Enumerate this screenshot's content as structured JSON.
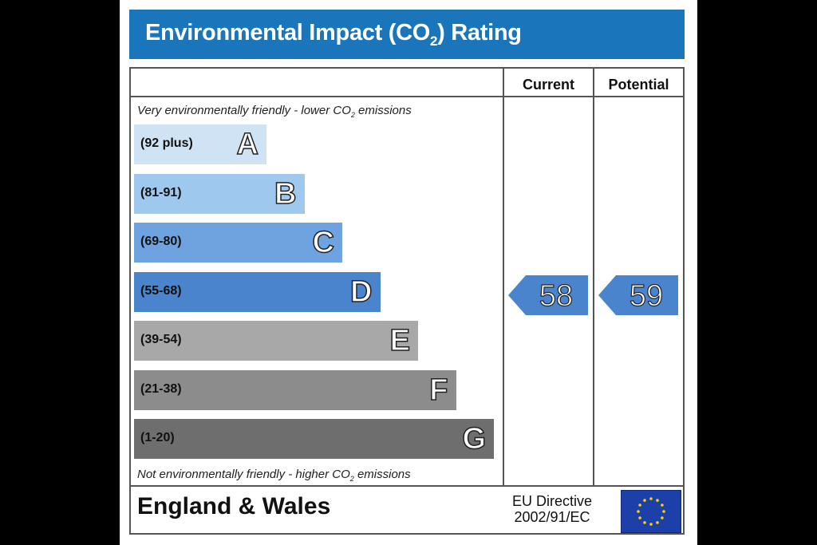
{
  "title": {
    "main": "Environmental Impact (CO",
    "sub": "2",
    "suffix": ") Rating"
  },
  "columns": {
    "current": "Current",
    "potential": "Potential"
  },
  "notes": {
    "top_main": "Very environmentally friendly - lower CO",
    "top_sub": "2",
    "top_suffix": " emissions",
    "bottom_main": "Not environmentally friendly - higher CO",
    "bottom_sub": "2",
    "bottom_suffix": " emissions"
  },
  "chart_data": {
    "type": "bar",
    "categories": [
      "A",
      "B",
      "C",
      "D",
      "E",
      "F",
      "G"
    ],
    "bands": [
      {
        "letter": "A",
        "range": "(92 plus)",
        "color": "#cfe3f5",
        "level": 1
      },
      {
        "letter": "B",
        "range": "(81-91)",
        "color": "#9ec8ee",
        "level": 2
      },
      {
        "letter": "C",
        "range": "(69-80)",
        "color": "#6ea3df",
        "level": 3
      },
      {
        "letter": "D",
        "range": "(55-68)",
        "color": "#4a84cc",
        "level": 4
      },
      {
        "letter": "E",
        "range": "(39-54)",
        "color": "#a8a8a8",
        "level": 5
      },
      {
        "letter": "F",
        "range": "(21-38)",
        "color": "#8c8c8c",
        "level": 6
      },
      {
        "letter": "G",
        "range": "(1-20)",
        "color": "#6e6e6e",
        "level": 7
      }
    ],
    "current": {
      "value": 58,
      "band": "D"
    },
    "potential": {
      "value": 59,
      "band": "D"
    },
    "arrow_color": "#4a84cc"
  },
  "footer": {
    "country": "England & Wales",
    "directive_line1": "EU Directive",
    "directive_line2": "2002/91/EC"
  }
}
